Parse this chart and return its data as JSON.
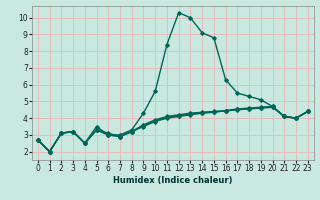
{
  "xlabel": "Humidex (Indice chaleur)",
  "bg_color": "#c8e8e0",
  "grid_color": "#e8b8b8",
  "line_color": "#006655",
  "xlim": [
    -0.5,
    23.5
  ],
  "ylim": [
    1.5,
    10.7
  ],
  "xticks": [
    0,
    1,
    2,
    3,
    4,
    5,
    6,
    7,
    8,
    9,
    10,
    11,
    12,
    13,
    14,
    15,
    16,
    17,
    18,
    19,
    20,
    21,
    22,
    23
  ],
  "yticks": [
    2,
    3,
    4,
    5,
    6,
    7,
    8,
    9,
    10
  ],
  "series": [
    [
      2.7,
      2.0,
      3.1,
      3.2,
      2.5,
      3.5,
      3.0,
      3.0,
      3.3,
      4.3,
      5.6,
      8.4,
      10.3,
      10.0,
      9.1,
      8.8,
      6.3,
      5.5,
      5.3,
      5.1,
      4.7,
      4.1,
      4.0,
      4.4
    ],
    [
      2.7,
      2.0,
      3.1,
      3.2,
      2.5,
      3.3,
      3.1,
      2.9,
      3.2,
      3.5,
      3.8,
      4.0,
      4.1,
      4.2,
      4.3,
      4.35,
      4.45,
      4.55,
      4.6,
      4.65,
      4.7,
      4.1,
      4.0,
      4.4
    ],
    [
      2.7,
      2.0,
      3.1,
      3.2,
      2.5,
      3.3,
      3.0,
      2.9,
      3.2,
      3.55,
      3.85,
      4.05,
      4.15,
      4.25,
      4.32,
      4.38,
      4.43,
      4.52,
      4.57,
      4.62,
      4.68,
      4.1,
      4.0,
      4.4
    ],
    [
      2.7,
      2.0,
      3.1,
      3.2,
      2.5,
      3.3,
      3.0,
      2.9,
      3.2,
      3.6,
      3.9,
      4.1,
      4.2,
      4.3,
      4.35,
      4.4,
      4.44,
      4.5,
      4.55,
      4.6,
      4.65,
      4.1,
      4.0,
      4.4
    ]
  ]
}
